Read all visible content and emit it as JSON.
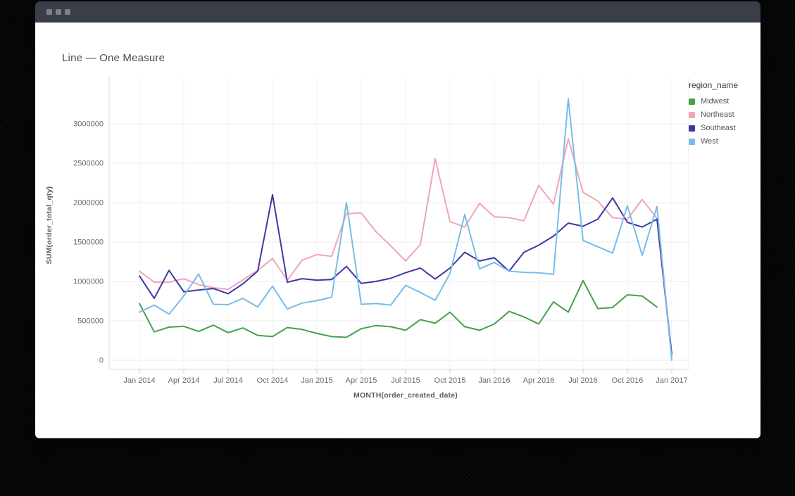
{
  "legend": {
    "title": "region_name"
  },
  "chart_data": {
    "type": "line",
    "title": "Line — One Measure",
    "xlabel": "MONTH(order_created_date)",
    "ylabel": "SUM(order_total_qty)",
    "legend_position": "right",
    "grid": true,
    "x_tick_labels": [
      "Jan 2014",
      "Apr 2014",
      "Jul 2014",
      "Oct 2014",
      "Jan 2015",
      "Apr 2015",
      "Jul 2015",
      "Oct 2015",
      "Jan 2016",
      "Apr 2016",
      "Jul 2016",
      "Oct 2016",
      "Jan 2017"
    ],
    "x_tick_interval_months": 3,
    "y_ticks": [
      0,
      500000,
      1000000,
      1500000,
      2000000,
      2500000,
      3000000
    ],
    "ylim": [
      0,
      3400000
    ],
    "series": [
      {
        "name": "Midwest",
        "color": "#45a14b",
        "values": [
          720000,
          360000,
          420000,
          430000,
          365000,
          445000,
          350000,
          410000,
          315000,
          300000,
          415000,
          390000,
          340000,
          300000,
          290000,
          400000,
          440000,
          425000,
          380000,
          515000,
          470000,
          610000,
          425000,
          380000,
          460000,
          620000,
          550000,
          460000,
          740000,
          610000,
          1010000,
          655000,
          670000,
          830000,
          815000,
          675000
        ]
      },
      {
        "name": "Northeast",
        "color": "#f2a3ba",
        "values": [
          1130000,
          990000,
          990000,
          1035000,
          960000,
          920000,
          900000,
          1020000,
          1140000,
          1290000,
          1015000,
          1270000,
          1340000,
          1320000,
          1860000,
          1870000,
          1630000,
          1450000,
          1260000,
          1470000,
          2560000,
          1760000,
          1690000,
          1990000,
          1820000,
          1810000,
          1770000,
          2220000,
          1980000,
          2810000,
          2130000,
          2020000,
          1810000,
          1790000,
          2040000,
          1800000,
          30000
        ]
      },
      {
        "name": "Southeast",
        "color": "#4237a0",
        "values": [
          1070000,
          785000,
          1140000,
          870000,
          890000,
          910000,
          845000,
          970000,
          1130000,
          2100000,
          990000,
          1035000,
          1015000,
          1025000,
          1190000,
          975000,
          1000000,
          1040000,
          1110000,
          1170000,
          1030000,
          1170000,
          1370000,
          1260000,
          1300000,
          1130000,
          1370000,
          1460000,
          1575000,
          1740000,
          1700000,
          1790000,
          2060000,
          1750000,
          1690000,
          1790000,
          75000
        ]
      },
      {
        "name": "West",
        "color": "#76bde8",
        "values": [
          610000,
          700000,
          585000,
          815000,
          1095000,
          710000,
          705000,
          785000,
          675000,
          940000,
          650000,
          725000,
          755000,
          800000,
          2000000,
          710000,
          720000,
          700000,
          950000,
          860000,
          760000,
          1100000,
          1850000,
          1160000,
          1240000,
          1130000,
          1115000,
          1110000,
          1090000,
          3320000,
          1520000,
          1440000,
          1360000,
          1960000,
          1330000,
          1950000,
          0
        ]
      }
    ]
  }
}
